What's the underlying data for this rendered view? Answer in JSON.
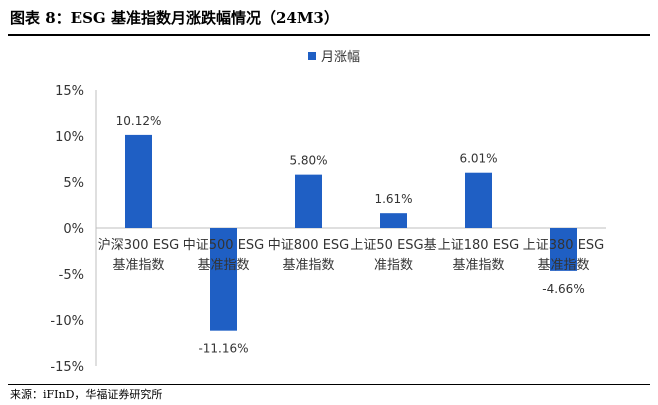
{
  "header": {
    "title": "图表 8：ESG 基准指数月涨跌幅情况（24M3）"
  },
  "footer": {
    "source": "来源：iFInD，华福证券研究所"
  },
  "chart_data": {
    "type": "bar",
    "categories": [
      [
        "沪深300 ESG",
        "基准指数"
      ],
      [
        "中证500 ESG",
        "基准指数"
      ],
      [
        "中证800 ESG",
        "基准指数"
      ],
      [
        "上证50 ESG基",
        "准指数"
      ],
      [
        "上证180 ESG",
        "基准指数"
      ],
      [
        "上证380 ESG",
        "基准指数"
      ]
    ],
    "series": [
      {
        "name": "月涨幅",
        "values": [
          10.12,
          -11.16,
          5.8,
          1.61,
          6.01,
          -4.66
        ],
        "color": "#1f5fc4"
      }
    ],
    "data_labels": [
      "10.12%",
      "-11.16%",
      "5.80%",
      "1.61%",
      "6.01%",
      "-4.66%"
    ],
    "y_ticks": [
      "15%",
      "10%",
      "5%",
      "0%",
      "-5%",
      "-10%",
      "-15%"
    ],
    "ylim": [
      -15,
      15
    ],
    "legend_position": "top-center",
    "grid": false
  }
}
